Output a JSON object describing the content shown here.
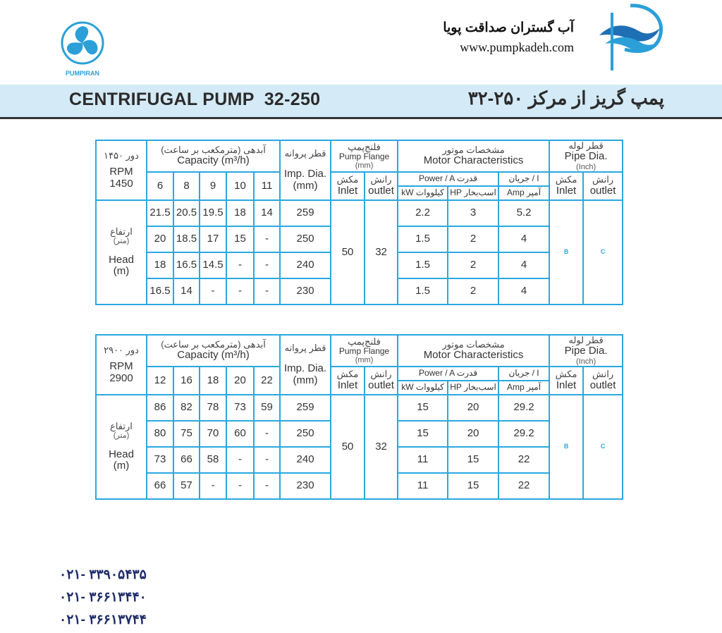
{
  "header": {
    "pumpiran_brand": "PUMPIRAN",
    "company_name": "آب گستران صداقت پویا",
    "website": "www.pumpkadeh.com",
    "title_en": "CENTRIFUGAL PUMP  32-250",
    "title_fa": "پمپ گریز از مرکز ۲۵۰-۳۲",
    "accent_color": "#29a8e0",
    "band_color": "#d4eaf6"
  },
  "labels": {
    "capacity_fa": "آبدهی (مترمکعب بر ساعت)",
    "capacity_en": "Capacity (m³/h)",
    "imp_fa": "قطر پروانه",
    "imp_en": "Imp. Dia.",
    "imp_unit": "(mm)",
    "flange_fa": "فلنج‌پمپ",
    "flange_en": "Pump Flange",
    "flange_unit": "(mm)",
    "motor_fa": "مشخصات موتور",
    "motor_en": "Motor Characteristics",
    "pipe_fa": "قطر لوله",
    "pipe_en": "Pipe Dia.",
    "pipe_unit": "(Inch)",
    "inlet_fa": "مکش",
    "inlet_en": "Inlet",
    "outlet_fa": "رانش",
    "outlet_en": "outlet",
    "power": "Power  /  A قدرت",
    "current": "جریان / I",
    "kw": "kW کیلووات",
    "hp": "HP اسب‌بخار",
    "amp": "Amp آمپر",
    "head_fa": "ارتفاع",
    "head_fa_unit": "(متر)",
    "head_en": "Head",
    "head_unit": "(m)"
  },
  "tables": [
    {
      "rpm_fa": "دور ۱۴۵۰",
      "rpm_en": "RPM 1450",
      "capacities": [
        "6",
        "8",
        "9",
        "10",
        "11"
      ],
      "flange_inlet": "50",
      "flange_outlet": "32",
      "pipe_inlet": "B",
      "pipe_outlet": "C",
      "rows": [
        {
          "heads": [
            "21.5",
            "20.5",
            "19.5",
            "18",
            "14"
          ],
          "imp": "259",
          "kw": "2.2",
          "hp": "3",
          "amp": "5.2"
        },
        {
          "heads": [
            "20",
            "18.5",
            "17",
            "15",
            "-"
          ],
          "imp": "250",
          "kw": "1.5",
          "hp": "2",
          "amp": "4"
        },
        {
          "heads": [
            "18",
            "16.5",
            "14.5",
            "-",
            "-"
          ],
          "imp": "240",
          "kw": "1.5",
          "hp": "2",
          "amp": "4"
        },
        {
          "heads": [
            "16.5",
            "14",
            "-",
            "-",
            "-"
          ],
          "imp": "230",
          "kw": "1.5",
          "hp": "2",
          "amp": "4"
        }
      ]
    },
    {
      "rpm_fa": "دور ۲۹۰۰",
      "rpm_en": "RPM 2900",
      "capacities": [
        "12",
        "16",
        "18",
        "20",
        "22"
      ],
      "flange_inlet": "50",
      "flange_outlet": "32",
      "pipe_inlet": "B",
      "pipe_outlet": "C",
      "rows": [
        {
          "heads": [
            "86",
            "82",
            "78",
            "73",
            "59"
          ],
          "imp": "259",
          "kw": "15",
          "hp": "20",
          "amp": "29.2"
        },
        {
          "heads": [
            "80",
            "75",
            "70",
            "60",
            "-"
          ],
          "imp": "250",
          "kw": "15",
          "hp": "20",
          "amp": "29.2"
        },
        {
          "heads": [
            "73",
            "66",
            "58",
            "-",
            "-"
          ],
          "imp": "240",
          "kw": "11",
          "hp": "15",
          "amp": "22"
        },
        {
          "heads": [
            "66",
            "57",
            "-",
            "-",
            "-"
          ],
          "imp": "230",
          "kw": "11",
          "hp": "15",
          "amp": "22"
        }
      ]
    }
  ],
  "phones": [
    "۰۲۱- ۳۳۹۰۵۴۳۵",
    "۰۲۱- ۳۶۶۱۳۴۴۰",
    "۰۲۱- ۳۶۶۱۳۷۴۴"
  ]
}
